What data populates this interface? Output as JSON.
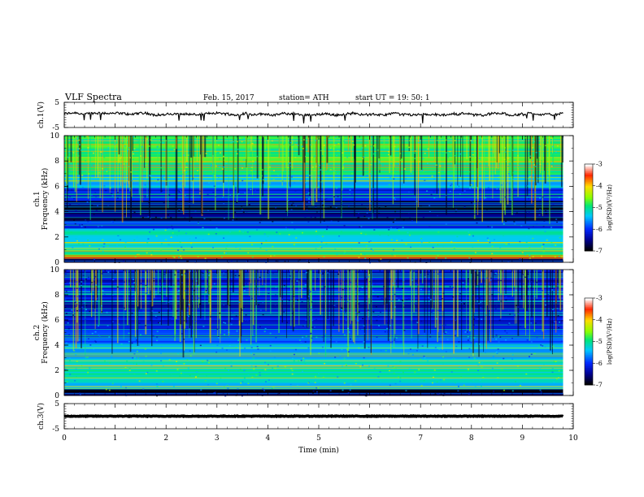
{
  "header": {
    "title": "VLF  Spectra",
    "date": "Feb. 15, 2017",
    "station": "station= ATH",
    "start_time": "start  UT  =   19: 50: 1"
  },
  "chart_data": [
    {
      "name": "ch1-voltage",
      "type": "line",
      "ylabel": "ch.1(V)",
      "ylim": [
        -5,
        5
      ],
      "y_ticks": [
        "5",
        "-5"
      ],
      "description_level": 0.3,
      "x_range_min": [
        0,
        9.8
      ]
    },
    {
      "name": "ch1-spectrogram",
      "type": "heatmap",
      "ylabel": "ch.1\nFrequency (kHz)",
      "ylabel_lines": [
        "ch.1",
        "Frequency (kHz)"
      ],
      "ylim": [
        0,
        10
      ],
      "y_ticks": [
        "0",
        "2",
        "4",
        "6",
        "8",
        "10"
      ],
      "x_range_min": [
        0,
        9.8
      ],
      "colorbar": {
        "label": "log(PSD)(V²/Hz)",
        "range": [
          -7,
          -3
        ],
        "ticks": [
          "-3",
          "-4",
          "-5",
          "-6",
          "-7"
        ]
      },
      "bands": [
        {
          "from": 0.0,
          "to": 0.3,
          "level": -6.8
        },
        {
          "from": 0.3,
          "to": 0.9,
          "level": -4.8
        },
        {
          "from": 0.9,
          "to": 1.6,
          "level": -5.4
        },
        {
          "from": 1.6,
          "to": 2.6,
          "level": -5.2
        },
        {
          "from": 2.6,
          "to": 3.2,
          "level": -6.0
        },
        {
          "from": 3.2,
          "to": 4.8,
          "level": -6.7
        },
        {
          "from": 4.8,
          "to": 5.8,
          "level": -6.1
        },
        {
          "from": 5.8,
          "to": 6.8,
          "level": -5.4
        },
        {
          "from": 6.8,
          "to": 7.5,
          "level": -5.0
        },
        {
          "from": 7.5,
          "to": 10.0,
          "level": -4.9
        }
      ]
    },
    {
      "name": "ch2-spectrogram",
      "type": "heatmap",
      "ylabel_lines": [
        "ch.2",
        "Frequency (kHz)"
      ],
      "ylim": [
        0,
        10
      ],
      "y_ticks": [
        "0",
        "2",
        "4",
        "6",
        "8",
        "10"
      ],
      "x_range_min": [
        0,
        9.8
      ],
      "colorbar": {
        "label": "log(PSD)(V²/Hz)",
        "range": [
          -7,
          -3
        ],
        "ticks": [
          "-3",
          "-4",
          "-5",
          "-6",
          "-7"
        ]
      },
      "bands": [
        {
          "from": 0.0,
          "to": 0.4,
          "level": -6.8
        },
        {
          "from": 0.4,
          "to": 1.0,
          "level": -5.3
        },
        {
          "from": 1.0,
          "to": 2.8,
          "level": -5.1
        },
        {
          "from": 2.8,
          "to": 4.0,
          "level": -5.5
        },
        {
          "from": 4.0,
          "to": 5.2,
          "level": -5.9
        },
        {
          "from": 5.2,
          "to": 6.2,
          "level": -6.2
        },
        {
          "from": 6.2,
          "to": 7.4,
          "level": -6.4
        },
        {
          "from": 7.4,
          "to": 10.0,
          "level": -6.2
        }
      ]
    },
    {
      "name": "ch3-voltage",
      "type": "line",
      "ylabel": "ch.3(V)",
      "ylim": [
        -5,
        5
      ],
      "y_ticks": [
        "5",
        "-5"
      ],
      "level": 0.0,
      "x_range_min": [
        0,
        9.8
      ]
    }
  ],
  "x_axis": {
    "label": "Time  (min)",
    "range": [
      0,
      10
    ],
    "ticks": [
      "0",
      "1",
      "2",
      "3",
      "4",
      "5",
      "6",
      "7",
      "8",
      "9",
      "10"
    ]
  }
}
